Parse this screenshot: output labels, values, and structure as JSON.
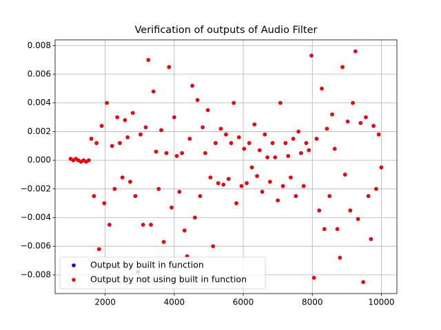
{
  "chart_data": {
    "type": "scatter",
    "title": "Verification of outputs of Audio Filter",
    "x": [
      1000,
      1075,
      1150,
      1225,
      1300,
      1375,
      1450,
      1525,
      1600,
      1675,
      1750,
      1825,
      1900,
      1975,
      2050,
      2125,
      2200,
      2275,
      2350,
      2425,
      2500,
      2575,
      2650,
      2725,
      2800,
      2875,
      2950,
      3025,
      3100,
      3175,
      3250,
      3325,
      3400,
      3475,
      3550,
      3625,
      3700,
      3775,
      3850,
      3925,
      4000,
      4075,
      4150,
      4225,
      4300,
      4375,
      4450,
      4525,
      4600,
      4675,
      4750,
      4825,
      4900,
      4975,
      5050,
      5125,
      5200,
      5275,
      5350,
      5425,
      5500,
      5575,
      5650,
      5725,
      5800,
      5875,
      5950,
      6025,
      6100,
      6175,
      6250,
      6325,
      6400,
      6475,
      6550,
      6625,
      6700,
      6775,
      6850,
      6925,
      7000,
      7075,
      7150,
      7225,
      7300,
      7375,
      7450,
      7525,
      7600,
      7675,
      7750,
      7825,
      7900,
      7975,
      8050,
      8125,
      8200,
      8275,
      8350,
      8425,
      8500,
      8575,
      8650,
      8725,
      8800,
      8875,
      8950,
      9025,
      9100,
      9175,
      9250,
      9325,
      9400,
      9475,
      9550,
      9625,
      9700,
      9775,
      9850,
      9925,
      10000
    ],
    "series": [
      {
        "name": "Output by built in function",
        "color": "#0000ff",
        "values": [
          0.0001,
          0,
          0.0001,
          0,
          -0.0001,
          0,
          -0.0001,
          0,
          0.0015,
          -0.0025,
          0.0012,
          -0.0062,
          0.0024,
          -0.003,
          0.004,
          -0.0045,
          0.001,
          -0.002,
          0.003,
          0.0012,
          -0.0012,
          0.0028,
          0.0016,
          -0.0015,
          0.0033,
          -0.0025,
          -0.0078,
          0.0018,
          -0.0045,
          0.0023,
          0.007,
          -0.0045,
          0.0048,
          0.0006,
          -0.002,
          0.0021,
          -0.0057,
          0.0005,
          0.0065,
          -0.0033,
          0.003,
          0.0003,
          -0.0022,
          0.0005,
          -0.0049,
          -0.0067,
          0.0015,
          0.0052,
          -0.004,
          0.0042,
          -0.0025,
          0.0023,
          0.0005,
          0.0035,
          -0.0012,
          -0.006,
          0.0012,
          -0.0016,
          0.0022,
          -0.0017,
          0.0018,
          -0.0013,
          0.0012,
          0.004,
          -0.003,
          0.0016,
          -0.0018,
          0.0008,
          -0.0016,
          0.0012,
          -0.0005,
          0.0025,
          -0.0011,
          0.0007,
          -0.0022,
          0.0018,
          0.0002,
          -0.0015,
          0.0012,
          0.0002,
          -0.0028,
          0.004,
          -0.0018,
          0.0012,
          0.0003,
          -0.0012,
          0.0015,
          -0.0025,
          0.002,
          0.0005,
          -0.0018,
          0.0012,
          0.0007,
          0.0073,
          -0.0082,
          0.0015,
          -0.0035,
          0.005,
          -0.0048,
          0.0022,
          -0.0025,
          0.0032,
          0.0008,
          -0.0048,
          -0.0068,
          0.0065,
          -0.001,
          0.0027,
          -0.0035,
          0.004,
          0.0076,
          -0.0041,
          0.0026,
          -0.0085,
          0.003,
          -0.0025,
          -0.0055,
          0.0024,
          -0.002,
          0.0018,
          -0.0005
        ]
      },
      {
        "name": "Output by not using built in function",
        "color": "#ff0000",
        "values": [
          0.0001,
          0,
          0.0001,
          0,
          -0.0001,
          0,
          -0.0001,
          0,
          0.0015,
          -0.0025,
          0.0012,
          -0.0062,
          0.0024,
          -0.003,
          0.004,
          -0.0045,
          0.001,
          -0.002,
          0.003,
          0.0012,
          -0.0012,
          0.0028,
          0.0016,
          -0.0015,
          0.0033,
          -0.0025,
          -0.0078,
          0.0018,
          -0.0045,
          0.0023,
          0.007,
          -0.0045,
          0.0048,
          0.0006,
          -0.002,
          0.0021,
          -0.0057,
          0.0005,
          0.0065,
          -0.0033,
          0.003,
          0.0003,
          -0.0022,
          0.0005,
          -0.0049,
          -0.0067,
          0.0015,
          0.0052,
          -0.004,
          0.0042,
          -0.0025,
          0.0023,
          0.0005,
          0.0035,
          -0.0012,
          -0.006,
          0.0012,
          -0.0016,
          0.0022,
          -0.0017,
          0.0018,
          -0.0013,
          0.0012,
          0.004,
          -0.003,
          0.0016,
          -0.0018,
          0.0008,
          -0.0016,
          0.0012,
          -0.0005,
          0.0025,
          -0.0011,
          0.0007,
          -0.0022,
          0.0018,
          0.0002,
          -0.0015,
          0.0012,
          0.0002,
          -0.0028,
          0.004,
          -0.0018,
          0.0012,
          0.0003,
          -0.0012,
          0.0015,
          -0.0025,
          0.002,
          0.0005,
          -0.0018,
          0.0012,
          0.0007,
          0.0073,
          -0.0082,
          0.0015,
          -0.0035,
          0.005,
          -0.0048,
          0.0022,
          -0.0025,
          0.0032,
          0.0008,
          -0.0048,
          -0.0068,
          0.0065,
          -0.001,
          0.0027,
          -0.0035,
          0.004,
          0.0076,
          -0.0041,
          0.0026,
          -0.0085,
          0.003,
          -0.0025,
          -0.0055,
          0.0024,
          -0.002,
          0.0018,
          -0.0005
        ]
      }
    ],
    "xlim": [
      550,
      10450
    ],
    "ylim": [
      -0.0093,
      0.0084
    ],
    "xticks": [
      2000,
      4000,
      6000,
      8000,
      10000
    ],
    "yticks": [
      {
        "value": -0.008,
        "label": "−0.008"
      },
      {
        "value": -0.006,
        "label": "−0.006"
      },
      {
        "value": -0.004,
        "label": "−0.004"
      },
      {
        "value": -0.002,
        "label": "−0.002"
      },
      {
        "value": 0,
        "label": "0.000"
      },
      {
        "value": 0.002,
        "label": "0.002"
      },
      {
        "value": 0.004,
        "label": "0.004"
      },
      {
        "value": 0.006,
        "label": "0.006"
      },
      {
        "value": 0.008,
        "label": "0.008"
      }
    ],
    "grid": true,
    "legend": "lower left"
  }
}
